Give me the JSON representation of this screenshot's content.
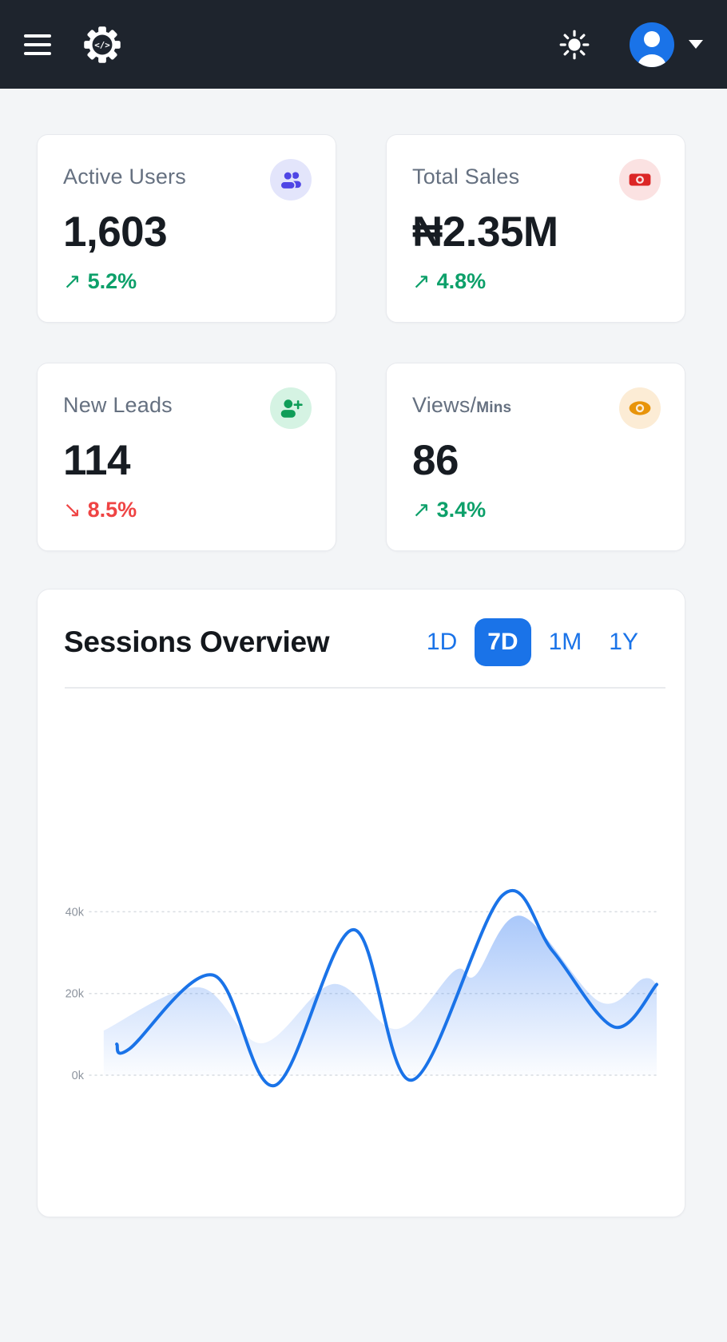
{
  "theme": {
    "header_bg": "#1e242d",
    "page_bg": "#f3f5f7",
    "accent_blue": "#1a73e8",
    "trend_up_green": "#0da06a",
    "trend_down_red": "#ef4444"
  },
  "header": {
    "menu_icon": "hamburger-menu",
    "logo_icon": "gear-with-code-brackets",
    "logo_glyph": "</>",
    "theme_icon": "sun",
    "avatar_icon": "user-avatar",
    "caret_icon": "chevron-down"
  },
  "stats": [
    {
      "title": "Active Users",
      "title_small": "",
      "value": "1,603",
      "trend_arrow": "↗",
      "trend_value": "5.2%",
      "trend_dir": "up",
      "icon": "users",
      "icon_color": "#4f46e5",
      "icon_bg": "#e3e5fb"
    },
    {
      "title": "Total Sales",
      "title_small": "",
      "value": "₦2.35M",
      "trend_arrow": "↗",
      "trend_value": "4.8%",
      "trend_dir": "up",
      "icon": "banknote",
      "icon_color": "#dc2626",
      "icon_bg": "#fbe2e2"
    },
    {
      "title": "New Leads",
      "title_small": "",
      "value": "114",
      "trend_arrow": "↘",
      "trend_value": "8.5%",
      "trend_dir": "down",
      "icon": "person-plus",
      "icon_color": "#0f9d58",
      "icon_bg": "#d5f3e3"
    },
    {
      "title": "Views/",
      "title_small": "Mins",
      "value": "86",
      "trend_arrow": "↗",
      "trend_value": "3.4%",
      "trend_dir": "up",
      "icon": "eye",
      "icon_color": "#e8940a",
      "icon_bg": "#fcecd5"
    }
  ],
  "sessions": {
    "title": "Sessions Overview",
    "ranges": [
      {
        "label": "1D",
        "active": false
      },
      {
        "label": "7D",
        "active": true
      },
      {
        "label": "1M",
        "active": false
      },
      {
        "label": "1Y",
        "active": false
      }
    ]
  },
  "chart_data": {
    "type": "area",
    "title": "Sessions Overview",
    "selected_range": "7D",
    "grid": "horizontal dashed",
    "x_axis_labels_visible": false,
    "y_unit": "sessions (thousands)",
    "ylim": [
      0,
      40
    ],
    "y_ticks": [
      {
        "label": "0k",
        "value": 0
      },
      {
        "label": "20k",
        "value": 20
      },
      {
        "label": "40k",
        "value": 40
      }
    ],
    "series": [
      {
        "name": "sessions-area",
        "style": "area-gradient",
        "color": "#4285f4",
        "points": [
          [
            0.025,
            10.9
          ],
          [
            0.193,
            21.5
          ],
          [
            0.303,
            7.8
          ],
          [
            0.43,
            22.3
          ],
          [
            0.542,
            11.3
          ],
          [
            0.644,
            25.6
          ],
          [
            0.68,
            24.4
          ],
          [
            0.761,
            39.0
          ],
          [
            0.899,
            18.0
          ],
          [
            0.976,
            23.6
          ],
          [
            1.0,
            22.2
          ]
        ]
      },
      {
        "name": "sessions-line",
        "style": "line",
        "color": "#1a73e8",
        "stroke_width": 4,
        "points": [
          [
            0.048,
            7.6
          ],
          [
            0.07,
            6.4
          ],
          [
            0.218,
            24.5
          ],
          [
            0.327,
            -2.5
          ],
          [
            0.465,
            35.6
          ],
          [
            0.569,
            -1.2
          ],
          [
            0.728,
            44.0
          ],
          [
            0.817,
            30.3
          ],
          [
            0.925,
            11.8
          ],
          [
            1.0,
            22.2
          ]
        ]
      }
    ]
  }
}
